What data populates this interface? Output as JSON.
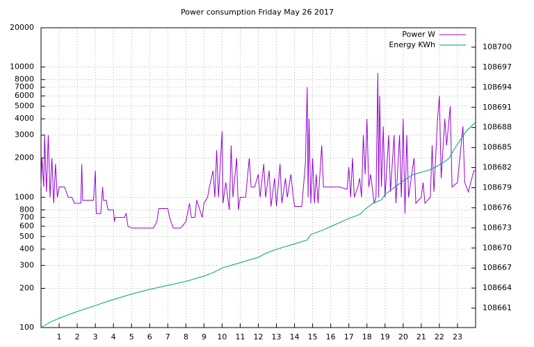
{
  "chart_data": {
    "type": "line",
    "title": "Power consumption Friday May 26 2017",
    "xlim": [
      0,
      24
    ],
    "xticks": [
      1,
      2,
      3,
      4,
      5,
      6,
      7,
      8,
      9,
      10,
      11,
      12,
      13,
      14,
      15,
      16,
      17,
      18,
      19,
      20,
      21,
      22,
      23
    ],
    "ylim": [
      100,
      20000
    ],
    "log_y": true,
    "yticks": [
      100,
      200,
      300,
      400,
      500,
      600,
      700,
      800,
      1000,
      2000,
      3000,
      4000,
      5000,
      6000,
      7000,
      8000,
      10000,
      20000
    ],
    "y2lim": [
      108658.1,
      108702.9
    ],
    "y2ticks": [
      108661,
      108664,
      108667,
      108670,
      108673,
      108676,
      108679,
      108682,
      108685,
      108688,
      108691,
      108694,
      108697,
      108700
    ],
    "grid": true,
    "legend": "top-right",
    "series": [
      {
        "name": "Power W",
        "color": "#9400d3",
        "x": [
          0,
          0.05,
          0.15,
          0.2,
          0.3,
          0.4,
          0.5,
          0.6,
          0.7,
          0.8,
          0.9,
          1.0,
          1.3,
          1.5,
          1.7,
          1.85,
          2.2,
          2.25,
          2.3,
          2.9,
          3.0,
          3.05,
          3.3,
          3.4,
          3.45,
          3.6,
          3.7,
          4.0,
          4.05,
          4.1,
          4.6,
          4.7,
          4.8,
          5.0,
          6.2,
          6.4,
          6.5,
          7.0,
          7.1,
          7.3,
          7.7,
          7.8,
          8.0,
          8.2,
          8.3,
          8.5,
          8.6,
          8.9,
          9.0,
          9.2,
          9.3,
          9.5,
          9.6,
          9.7,
          9.8,
          10.0,
          10.05,
          10.2,
          10.4,
          10.5,
          10.6,
          10.8,
          10.9,
          11.0,
          11.3,
          11.5,
          11.6,
          11.8,
          12.0,
          12.1,
          12.3,
          12.4,
          12.6,
          12.7,
          12.9,
          13.0,
          13.2,
          13.3,
          13.5,
          13.6,
          13.8,
          13.9,
          14.0,
          14.4,
          14.6,
          14.7,
          14.75,
          14.8,
          14.9,
          15.0,
          15.1,
          15.2,
          15.3,
          15.5,
          15.6,
          16.0,
          16.1,
          16.5,
          16.9,
          17.0,
          17.1,
          17.2,
          17.3,
          17.5,
          17.6,
          17.7,
          17.8,
          17.9,
          18.0,
          18.1,
          18.2,
          18.4,
          18.5,
          18.6,
          18.65,
          18.7,
          18.8,
          18.9,
          19.0,
          19.2,
          19.3,
          19.5,
          19.6,
          19.8,
          19.9,
          20.0,
          20.1,
          20.2,
          20.3,
          20.6,
          20.7,
          21.0,
          21.1,
          21.2,
          21.5,
          21.6,
          21.7,
          21.9,
          22.0,
          22.1,
          22.3,
          22.4,
          22.6,
          22.7,
          23.0,
          23.3,
          23.4,
          23.6,
          23.9,
          24.0
        ],
        "values": [
          1200,
          2000,
          1200,
          3000,
          1100,
          3000,
          1000,
          2000,
          900,
          1800,
          1000,
          1200,
          1200,
          1000,
          1000,
          900,
          900,
          1800,
          950,
          950,
          1600,
          750,
          750,
          1200,
          950,
          950,
          800,
          800,
          650,
          700,
          700,
          750,
          600,
          580,
          580,
          650,
          820,
          820,
          700,
          580,
          580,
          600,
          650,
          900,
          700,
          700,
          950,
          700,
          900,
          1000,
          1200,
          1600,
          1000,
          2300,
          1000,
          3200,
          900,
          1300,
          800,
          2500,
          1000,
          2000,
          800,
          1000,
          1000,
          2000,
          1200,
          1200,
          1500,
          1000,
          1800,
          1000,
          1600,
          850,
          1400,
          850,
          1800,
          900,
          1400,
          1000,
          1500,
          1100,
          850,
          850,
          1800,
          7000,
          1000,
          4000,
          900,
          2000,
          900,
          1500,
          900,
          2500,
          1200,
          1200,
          1200,
          1200,
          1150,
          1700,
          1000,
          2000,
          1000,
          1200,
          1400,
          1000,
          3000,
          1500,
          4000,
          1200,
          1500,
          900,
          1000,
          9000,
          1000,
          6000,
          1200,
          3500,
          1000,
          3000,
          1100,
          3000,
          900,
          3000,
          1000,
          4000,
          750,
          3000,
          1000,
          2000,
          900,
          1000,
          1300,
          900,
          1000,
          2500,
          1100,
          4000,
          6000,
          1400,
          4000,
          2500,
          5000,
          1200,
          1300,
          3500,
          1300,
          1100,
          1600,
          1600
        ]
      },
      {
        "name": "Energy KWh",
        "color": "#009e73",
        "axis": "y2",
        "x": [
          0,
          0.5,
          1,
          2,
          3,
          4,
          5,
          6,
          7,
          8,
          9,
          9.5,
          10,
          11,
          12,
          12.5,
          13,
          14,
          14.7,
          14.9,
          15.5,
          16,
          17,
          17.6,
          17.9,
          18.3,
          18.8,
          19,
          20,
          20.5,
          21,
          21.5,
          22,
          22.5,
          23,
          23.5,
          24
        ],
        "values": [
          108658.1,
          108658.9,
          108659.5,
          108660.5,
          108661.4,
          108662.3,
          108663.1,
          108663.8,
          108664.4,
          108665.0,
          108665.8,
          108666.3,
          108667.0,
          108667.8,
          108668.6,
          108669.3,
          108669.8,
          108670.6,
          108671.2,
          108672.0,
          108672.6,
          108673.2,
          108674.4,
          108675.0,
          108675.8,
          108676.6,
          108677.2,
          108678.0,
          108680.0,
          108680.9,
          108681.3,
          108681.7,
          108682.4,
          108683.3,
          108685.5,
          108687.5,
          108688.8
        ]
      }
    ]
  }
}
